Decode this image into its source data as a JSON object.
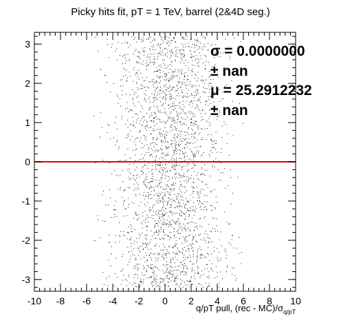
{
  "chart_data": {
    "type": "scatter",
    "title": "Picky hits fit, pT = 1 TeV, barrel (2&4D seg.)",
    "xlabel": {
      "main": "q/pT pull, (rec - MC)/σ",
      "subscript": "q/pT"
    },
    "ylabel": "",
    "xlim": [
      -10,
      10
    ],
    "ylim": [
      -3.3,
      3.3
    ],
    "x_ticks": [
      -10,
      -8,
      -6,
      -4,
      -2,
      0,
      2,
      4,
      6,
      8,
      10
    ],
    "x_tick_labels": [
      "-10",
      "-8",
      "-6",
      "-4",
      "-2",
      "0",
      "2",
      "4",
      "6",
      "8",
      "10"
    ],
    "y_ticks": [
      -3,
      -2,
      -1,
      0,
      1,
      2,
      3
    ],
    "y_tick_labels": [
      "-3",
      "-2",
      "-1",
      "0",
      "1",
      "2",
      "3"
    ],
    "reference_line": {
      "y": 0,
      "color": "#e00000"
    },
    "stats": [
      "σ = 0.0000000",
      "± nan",
      "μ = 25.2912232",
      "± nan"
    ],
    "distribution": {
      "x_center": 0.3,
      "x_sigma": 2.2,
      "x_range": [
        -5.5,
        6.0
      ],
      "y_range": [
        -3.2,
        3.2
      ],
      "n_points": 2600
    },
    "marker_color": "#000000"
  }
}
